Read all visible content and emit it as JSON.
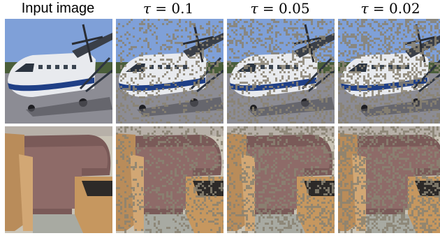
{
  "figure": {
    "columns": [
      {
        "id": "input",
        "header": "Input image",
        "is_math": false
      },
      {
        "id": "tau-0.1",
        "header": "τ = 0.1",
        "symbol": "τ",
        "value": "0.1",
        "is_math": true
      },
      {
        "id": "tau-0.05",
        "header": "τ = 0.05",
        "symbol": "τ",
        "value": "0.05",
        "is_math": true
      },
      {
        "id": "tau-0.02",
        "header": "τ = 0.02",
        "symbol": "τ",
        "value": "0.02",
        "is_math": true
      }
    ],
    "rows": [
      {
        "id": "airplane",
        "subject": "airplane"
      },
      {
        "id": "interior",
        "subject": "interior"
      }
    ],
    "overlay": {
      "noise_color": "#8a8272",
      "noise_density": [
        0,
        0.22,
        0.3,
        0.38
      ]
    },
    "colors": {
      "sky": "#7fa0d8",
      "tarmac": "#8c8c94",
      "fuselage": "#e8eaee",
      "stripe": "#1f3f86",
      "wall": "#7a5a58",
      "wood": "#b98c5a",
      "floor": "#c9c3b5"
    }
  }
}
